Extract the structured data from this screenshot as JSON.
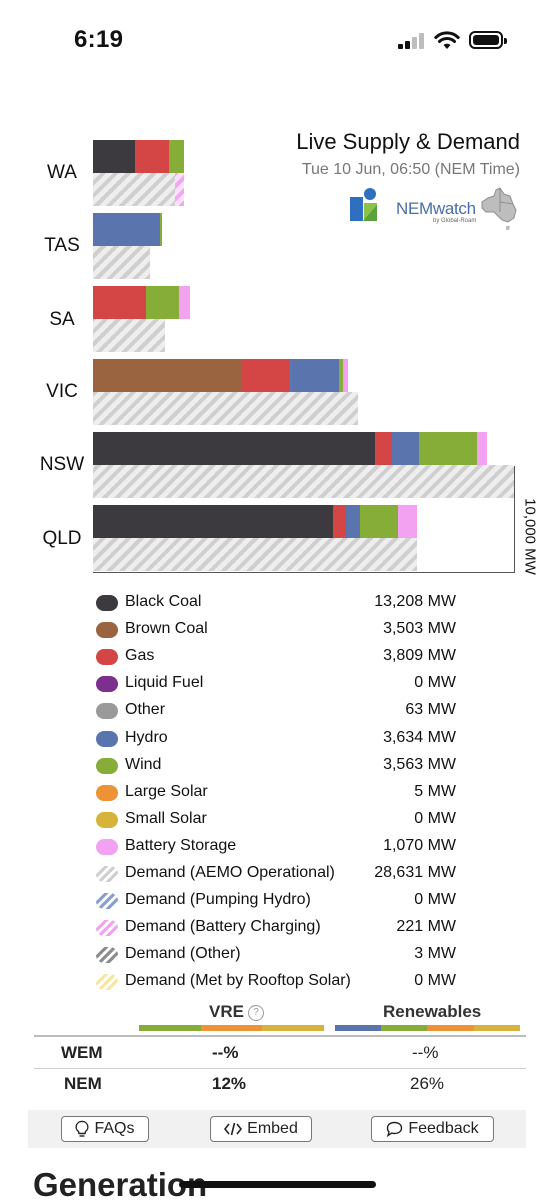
{
  "status_bar": {
    "time": "6:19"
  },
  "header": {
    "title": "Live Supply & Demand",
    "subtitle": "Tue 10 Jun, 06:50 (NEM Time)",
    "brand": "NEMwatch",
    "brand_sub": "by Global-Roam"
  },
  "colors": {
    "black_coal": "#3d3a3f",
    "brown_coal": "#9b6441",
    "gas": "#d44545",
    "liquid_fuel": "#7d2f8f",
    "other": "#9a9a9a",
    "hydro": "#5a74ad",
    "wind": "#86ad38",
    "large_solar": "#ee9236",
    "small_solar": "#d6b43c",
    "battery_storage": "#f2a2f0"
  },
  "chart_data": {
    "type": "bar",
    "orientation": "horizontal-stacked",
    "axis_label": "10,000 MW",
    "axis_max_mw": 10000,
    "categories": [
      "WA",
      "TAS",
      "SA",
      "VIC",
      "NSW",
      "QLD"
    ],
    "supply_series": [
      {
        "name": "Black Coal",
        "key": "black_coal",
        "values": [
          1000,
          0,
          0,
          0,
          6700,
          5700
        ]
      },
      {
        "name": "Brown Coal",
        "key": "brown_coal",
        "values": [
          0,
          0,
          0,
          3550,
          0,
          0
        ]
      },
      {
        "name": "Gas",
        "key": "gas",
        "values": [
          800,
          30,
          1250,
          1100,
          400,
          300
        ]
      },
      {
        "name": "Hydro",
        "key": "hydro",
        "values": [
          0,
          1550,
          0,
          1200,
          650,
          350
        ]
      },
      {
        "name": "Wind",
        "key": "wind",
        "values": [
          350,
          70,
          800,
          100,
          1370,
          900
        ]
      },
      {
        "name": "Battery Storage",
        "key": "battery_storage",
        "values": [
          0,
          0,
          250,
          100,
          250,
          450
        ]
      }
    ],
    "demand_series": [
      {
        "name": "Demand (AEMO Operational)",
        "values": [
          1950,
          1350,
          1700,
          6300,
          10000,
          7700
        ]
      },
      {
        "name": "Demand (Battery Charging)",
        "values": [
          200,
          0,
          0,
          0,
          0,
          0
        ]
      }
    ]
  },
  "legend": [
    {
      "name": "Black Coal",
      "value": "13,208 MW",
      "color": "#3d3a3f",
      "pattern": "solid"
    },
    {
      "name": "Brown Coal",
      "value": "3,503 MW",
      "color": "#9b6441",
      "pattern": "solid"
    },
    {
      "name": "Gas",
      "value": "3,809 MW",
      "color": "#d44545",
      "pattern": "solid"
    },
    {
      "name": "Liquid Fuel",
      "value": "0 MW",
      "color": "#7d2f8f",
      "pattern": "solid"
    },
    {
      "name": "Other",
      "value": "63 MW",
      "color": "#9a9a9a",
      "pattern": "solid"
    },
    {
      "name": "Hydro",
      "value": "3,634 MW",
      "color": "#5a74ad",
      "pattern": "solid"
    },
    {
      "name": "Wind",
      "value": "3,563 MW",
      "color": "#86ad38",
      "pattern": "solid"
    },
    {
      "name": "Large Solar",
      "value": "5 MW",
      "color": "#ee9236",
      "pattern": "solid"
    },
    {
      "name": "Small Solar",
      "value": "0 MW",
      "color": "#d6b43c",
      "pattern": "solid"
    },
    {
      "name": "Battery Storage",
      "value": "1,070 MW",
      "color": "#f2a2f0",
      "pattern": "solid"
    },
    {
      "name": "Demand (AEMO Operational)",
      "value": "28,631 MW",
      "color": "#cfcfcf",
      "pattern": "hatch"
    },
    {
      "name": "Demand (Pumping Hydro)",
      "value": "0 MW",
      "color": "#8aa0cc",
      "pattern": "hatch"
    },
    {
      "name": "Demand (Battery Charging)",
      "value": "221 MW",
      "color": "#f2a2f0",
      "pattern": "hatch"
    },
    {
      "name": "Demand (Other)",
      "value": "3 MW",
      "color": "#8d8d8d",
      "pattern": "hatch"
    },
    {
      "name": "Demand (Met by Rooftop Solar)",
      "value": "0 MW",
      "color": "#f7e6a0",
      "pattern": "hatch"
    }
  ],
  "stats": {
    "col_vre": "VRE",
    "col_renewables": "Renewables",
    "rows": [
      {
        "market": "WEM",
        "vre": "--%",
        "renewables": "--%"
      },
      {
        "market": "NEM",
        "vre": "12%",
        "renewables": "26%"
      }
    ]
  },
  "buttons": {
    "faqs": "FAQs",
    "embed": "Embed",
    "feedback": "Feedback"
  },
  "section_heading": "Generation"
}
